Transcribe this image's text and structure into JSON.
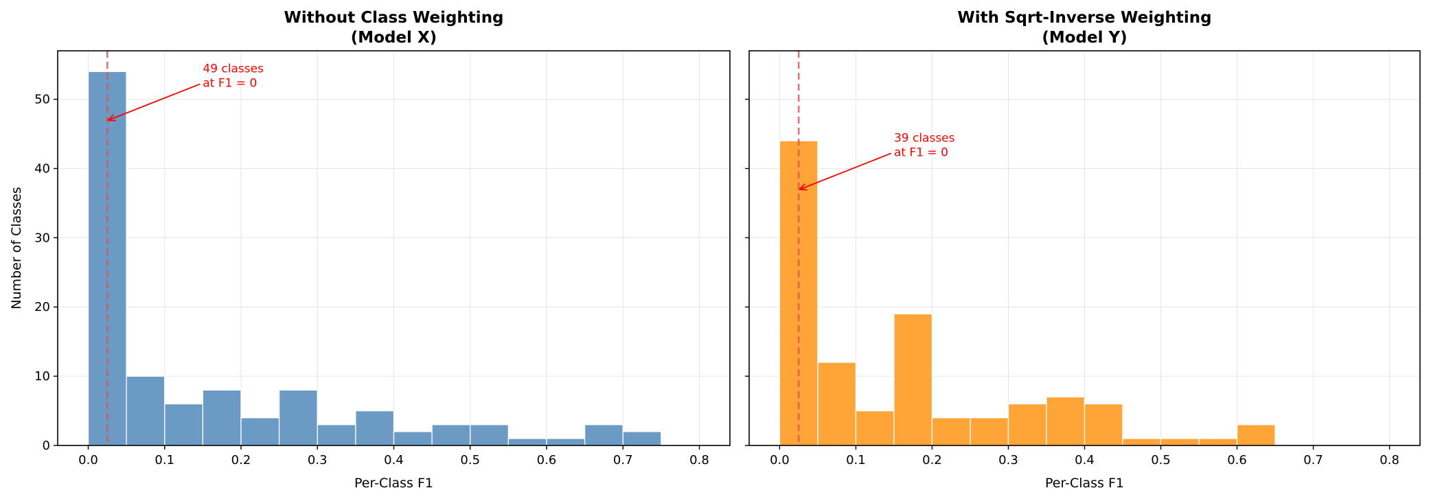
{
  "chart_data": [
    {
      "type": "bar",
      "title": [
        "Without Class Weighting",
        "(Model X)"
      ],
      "xlabel": "Per-Class F1",
      "ylabel": "Number of Classes",
      "xlim": [
        -0.04,
        0.84
      ],
      "ylim": [
        0,
        57
      ],
      "xticks": [
        0.0,
        0.1,
        0.2,
        0.3,
        0.4,
        0.5,
        0.6,
        0.7,
        0.8
      ],
      "xtick_labels": [
        "0.0",
        "0.1",
        "0.2",
        "0.3",
        "0.4",
        "0.5",
        "0.6",
        "0.7",
        "0.8"
      ],
      "yticks": [
        0,
        10,
        20,
        30,
        40,
        50
      ],
      "ytick_labels": [
        "0",
        "10",
        "20",
        "30",
        "40",
        "50"
      ],
      "grid": true,
      "bin_width": 0.05,
      "bins": [
        0.0,
        0.05,
        0.1,
        0.15,
        0.2,
        0.25,
        0.3,
        0.35,
        0.4,
        0.45,
        0.5,
        0.55,
        0.6,
        0.65,
        0.7
      ],
      "counts": [
        54,
        10,
        6,
        8,
        4,
        8,
        3,
        5,
        2,
        3,
        3,
        1,
        1,
        3,
        2
      ],
      "color": "#6b9ac4",
      "vline_x": 0.025,
      "vline_color": "#e05050",
      "annotation": {
        "lines": [
          "49 classes",
          "at F1 = 0"
        ],
        "text_x": 0.15,
        "text_y": 52,
        "arrow_x": 0.025,
        "arrow_y": 47,
        "color": "#ff0000"
      }
    },
    {
      "type": "bar",
      "title": [
        "With Sqrt-Inverse Weighting",
        "(Model Y)"
      ],
      "xlabel": "Per-Class F1",
      "ylabel": "",
      "xlim": [
        -0.04,
        0.84
      ],
      "ylim": [
        0,
        57
      ],
      "xticks": [
        0.0,
        0.1,
        0.2,
        0.3,
        0.4,
        0.5,
        0.6,
        0.7,
        0.8
      ],
      "xtick_labels": [
        "0.0",
        "0.1",
        "0.2",
        "0.3",
        "0.4",
        "0.5",
        "0.6",
        "0.7",
        "0.8"
      ],
      "yticks": [
        0,
        10,
        20,
        30,
        40,
        50
      ],
      "ytick_labels": [],
      "grid": true,
      "bin_width": 0.05,
      "bins": [
        0.0,
        0.05,
        0.1,
        0.15,
        0.2,
        0.25,
        0.3,
        0.35,
        0.4,
        0.45,
        0.5,
        0.55,
        0.6
      ],
      "counts": [
        44,
        12,
        5,
        19,
        4,
        4,
        6,
        7,
        6,
        1,
        1,
        1,
        3
      ],
      "color": "#ffa436",
      "vline_x": 0.025,
      "vline_color": "#e05050",
      "annotation": {
        "lines": [
          "39 classes",
          "at F1 = 0"
        ],
        "text_x": 0.15,
        "text_y": 42,
        "arrow_x": 0.025,
        "arrow_y": 37,
        "color": "#ff0000"
      }
    }
  ]
}
